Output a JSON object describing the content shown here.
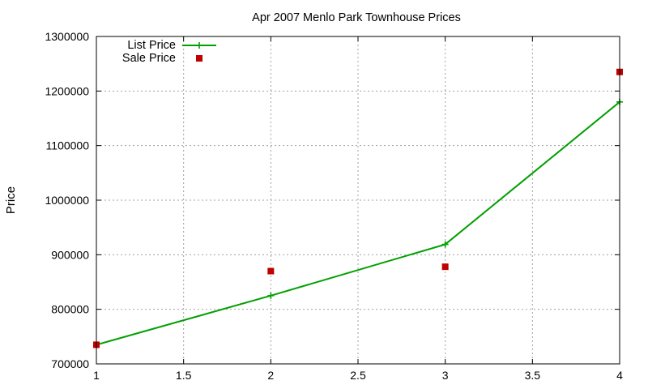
{
  "chart_data": {
    "type": "line",
    "title": "Apr 2007 Menlo Park Townhouse Prices",
    "xlabel": "",
    "ylabel": "Price",
    "xlim": [
      1,
      4
    ],
    "ylim": [
      700000,
      1300000
    ],
    "xticks": [
      "1",
      "1.5",
      "2",
      "2.5",
      "3",
      "3.5",
      "4"
    ],
    "yticks": [
      "700000",
      "800000",
      "900000",
      "1000000",
      "1100000",
      "1200000",
      "1300000"
    ],
    "grid": true,
    "legend_position": "top-left",
    "series": [
      {
        "name": "List Price",
        "style": "line-with-plus-markers",
        "color": "#00a000",
        "x": [
          1,
          2,
          3,
          4
        ],
        "y": [
          735000,
          825000,
          919000,
          1180000
        ]
      },
      {
        "name": "Sale Price",
        "style": "square-markers",
        "color": "#c00000",
        "x": [
          1,
          2,
          3,
          4
        ],
        "y": [
          735000,
          870000,
          878000,
          1235000
        ]
      }
    ]
  }
}
